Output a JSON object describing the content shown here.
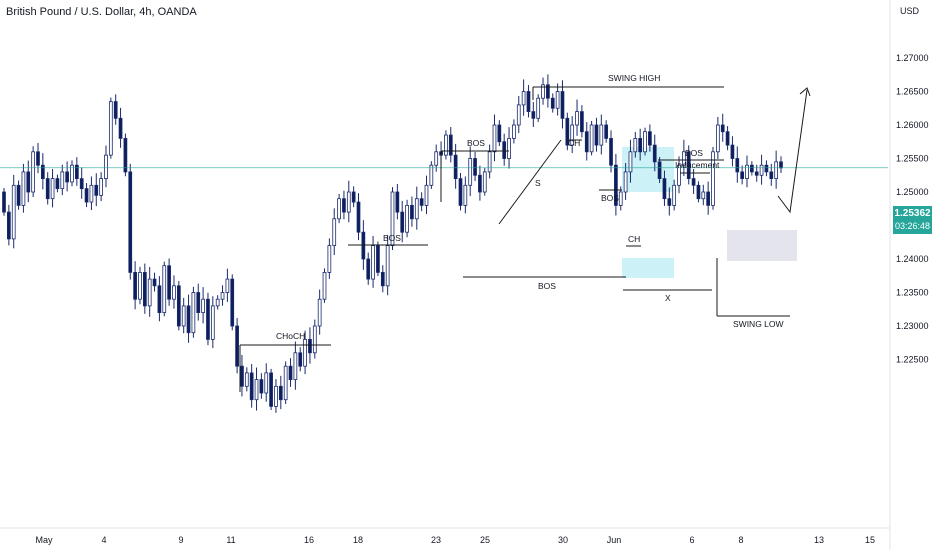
{
  "header": {
    "title": "British Pound / U.S. Dollar, 4h, OANDA",
    "currency": "USD"
  },
  "price_badge": {
    "price": "1.25362",
    "countdown": "03:26:48"
  },
  "colors": {
    "up_body": "#ffffff",
    "down_body": "#0c1f5c",
    "wick": "#1a2a6c",
    "price_line": "#26a69a",
    "annotation": "#1a1a1a",
    "zone_cyan": "#ccf1f7",
    "zone_grey": "#e4e4ec"
  },
  "chart_data": {
    "type": "candlestick",
    "title": "British Pound / U.S. Dollar, 4h, OANDA",
    "y_unit": "USD",
    "ylim": [
      1.2175,
      1.278
    ],
    "yticks": [
      1.27,
      1.265,
      1.26,
      1.255,
      1.25,
      1.245,
      1.24,
      1.235,
      1.23,
      1.225
    ],
    "ytick_labels": [
      "1.27000",
      "1.26500",
      "1.26000",
      "1.25500",
      "1.25000",
      "1.24500",
      "1.24000",
      "1.23500",
      "1.23000",
      "1.22500"
    ],
    "x_labels": [
      "May",
      "4",
      "9",
      "11",
      "16",
      "18",
      "23",
      "25",
      "30",
      "Jun",
      "6",
      "8",
      "13",
      "15"
    ],
    "current_price": 1.25362,
    "grid": false,
    "ohlc_path": [
      1.25,
      1.247,
      1.243,
      1.251,
      1.248,
      1.253,
      1.25,
      1.256,
      1.254,
      1.252,
      1.249,
      1.252,
      1.2505,
      1.253,
      1.2515,
      1.254,
      1.252,
      1.2505,
      1.2485,
      1.251,
      1.2495,
      1.252,
      1.2555,
      1.2635,
      1.261,
      1.258,
      1.253,
      1.238,
      1.234,
      1.238,
      1.233,
      1.237,
      1.236,
      1.232,
      1.239,
      1.234,
      1.236,
      1.23,
      1.233,
      1.229,
      1.235,
      1.232,
      1.234,
      1.228,
      1.233,
      1.234,
      1.235,
      1.237,
      1.23,
      1.224,
      1.221,
      1.223,
      1.219,
      1.222,
      1.22,
      1.223,
      1.218,
      1.221,
      1.219,
      1.224,
      1.222,
      1.226,
      1.224,
      1.228,
      1.226,
      1.23,
      1.234,
      1.238,
      1.242,
      1.246,
      1.249,
      1.247,
      1.25,
      1.2485,
      1.244,
      1.24,
      1.237,
      1.242,
      1.238,
      1.236,
      1.242,
      1.25,
      1.247,
      1.244,
      1.248,
      1.246,
      1.249,
      1.248,
      1.251,
      1.254,
      1.256,
      1.2555,
      1.2585,
      1.2555,
      1.252,
      1.248,
      1.251,
      1.255,
      1.2525,
      1.25,
      1.253,
      1.256,
      1.26,
      1.2575,
      1.255,
      1.258,
      1.26,
      1.263,
      1.265,
      1.262,
      1.261,
      1.264,
      1.266,
      1.264,
      1.2625,
      1.265,
      1.261,
      1.257,
      1.26,
      1.262,
      1.259,
      1.256,
      1.26,
      1.257,
      1.26,
      1.258,
      1.254,
      1.248,
      1.25,
      1.253,
      1.256,
      1.258,
      1.256,
      1.259,
      1.257,
      1.2545,
      1.252,
      1.249,
      1.248,
      1.251,
      1.254,
      1.256,
      1.252,
      1.251,
      1.249,
      1.25,
      1.248,
      1.256,
      1.26,
      1.259,
      1.257,
      1.255,
      1.253,
      1.252,
      1.254,
      1.253,
      1.2525,
      1.254,
      1.253,
      1.252,
      1.2545,
      1.2536
    ],
    "annotations": [
      {
        "label": "SWING HIGH"
      },
      {
        "label": "BOS"
      },
      {
        "label": "BOS"
      },
      {
        "label": "CH"
      },
      {
        "label": "BOS"
      },
      {
        "label": "BOS"
      },
      {
        "label": "Inducement"
      },
      {
        "label": "CH"
      },
      {
        "label": "BOS"
      },
      {
        "label": "X"
      },
      {
        "label": "SWING LOW"
      },
      {
        "label": "CHoCH"
      },
      {
        "label": "S"
      }
    ]
  }
}
